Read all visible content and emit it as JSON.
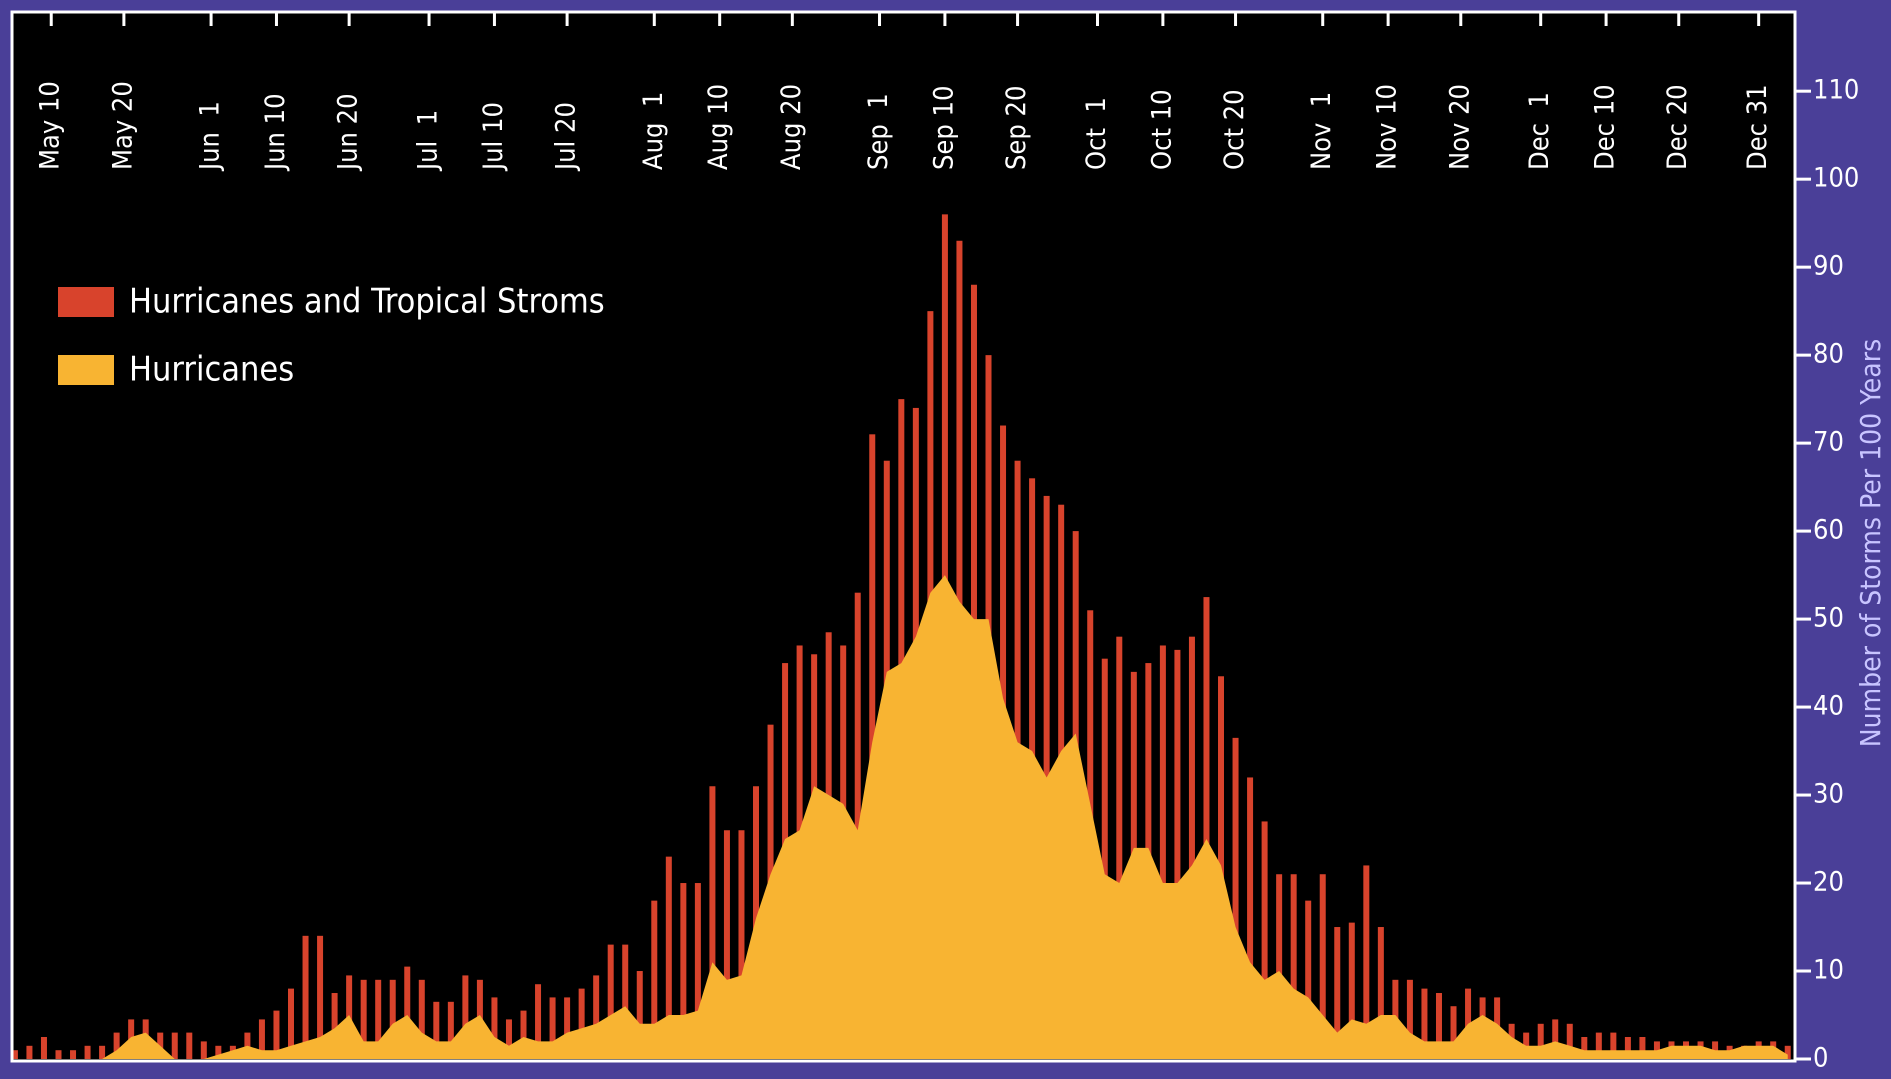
{
  "chart_data": {
    "type": "bar-area",
    "y_label": "Number of Storms Per 100 Years",
    "x": [
      125,
      127,
      129,
      131,
      133,
      135,
      137,
      139,
      141,
      143,
      145,
      147,
      149,
      151,
      153,
      155,
      157,
      159,
      161,
      163,
      165,
      167,
      169,
      171,
      173,
      175,
      177,
      179,
      181,
      183,
      185,
      187,
      189,
      191,
      193,
      195,
      197,
      199,
      201,
      203,
      205,
      207,
      209,
      211,
      213,
      215,
      217,
      219,
      221,
      223,
      225,
      227,
      229,
      231,
      233,
      235,
      237,
      239,
      241,
      243,
      245,
      247,
      249,
      251,
      253,
      255,
      257,
      259,
      261,
      263,
      265,
      267,
      269,
      271,
      273,
      275,
      277,
      279,
      281,
      283,
      285,
      287,
      289,
      291,
      293,
      295,
      297,
      299,
      301,
      303,
      305,
      307,
      309,
      311,
      313,
      315,
      317,
      319,
      321,
      323,
      325,
      327,
      329,
      331,
      333,
      335,
      337,
      339,
      341,
      343,
      345,
      347,
      349,
      351,
      353,
      355,
      357,
      359,
      361,
      363,
      365,
      367,
      369
    ],
    "series": [
      {
        "name": "Hurricanes and Tropical Stroms",
        "color": "#d8432c",
        "style": "bar",
        "values": [
          1,
          1.5,
          2.5,
          1,
          1,
          1.5,
          1.5,
          3,
          4.5,
          4.5,
          3,
          3,
          3,
          2,
          1.5,
          1.5,
          3,
          4.5,
          5.5,
          8,
          14,
          14,
          7.5,
          9.5,
          9,
          9,
          9,
          10.5,
          9,
          6.5,
          6.5,
          9.5,
          9,
          7,
          4.5,
          5.5,
          8.5,
          7,
          7,
          8,
          9.5,
          13,
          13,
          10,
          18,
          23,
          20,
          20,
          31,
          26,
          26,
          31,
          38,
          45,
          47,
          46,
          48.5,
          47,
          53,
          71,
          68,
          75,
          74,
          85,
          96,
          93,
          88,
          80,
          72,
          68,
          66,
          64,
          63,
          60,
          51,
          45.5,
          48,
          44,
          45,
          47,
          46.5,
          48,
          52.5,
          43.5,
          36.5,
          32,
          27,
          21,
          21,
          18,
          21,
          15,
          15.5,
          22,
          15,
          9,
          9,
          8,
          7.5,
          6,
          8,
          7,
          7,
          4,
          3,
          4,
          4.5,
          4,
          2.5,
          3,
          3,
          2.5,
          2.5,
          2,
          2,
          2,
          2,
          2,
          1.5,
          1.5,
          2,
          2,
          1.5
        ]
      },
      {
        "name": "Hurricanes",
        "color": "#f8b432",
        "style": "area",
        "values": [
          0,
          0,
          0,
          0,
          0,
          0,
          0,
          1,
          2.5,
          3,
          1.5,
          0,
          0,
          0,
          0.5,
          1,
          1.5,
          1,
          1,
          1.5,
          2,
          2.5,
          3.5,
          5,
          2,
          2,
          4,
          5,
          3,
          2,
          2,
          4,
          5,
          2.5,
          1.5,
          2.5,
          2,
          2,
          3,
          3.5,
          4,
          5,
          6,
          4,
          4,
          5,
          5,
          5.5,
          11,
          9,
          9.5,
          16,
          21,
          25,
          26,
          31,
          30,
          29,
          26,
          36,
          44,
          45,
          48,
          53,
          55,
          52,
          50,
          50,
          41,
          36,
          35,
          32,
          35,
          37,
          29,
          21,
          20,
          24,
          24,
          20,
          20,
          22,
          25,
          22,
          15,
          11,
          9,
          10,
          8,
          7,
          5,
          3,
          4.5,
          4,
          5,
          5,
          3,
          2,
          2,
          2,
          4,
          5,
          4,
          2.5,
          1.5,
          1.5,
          2,
          1.5,
          1,
          1,
          1,
          1,
          1,
          1,
          1.5,
          1.5,
          1.5,
          1,
          1,
          1.5,
          1.5,
          1.5,
          0.5
        ]
      }
    ],
    "xlim": [
      124.6,
      370
    ],
    "xticks": [
      {
        "value": 130,
        "label": "May 10"
      },
      {
        "value": 140,
        "label": "May 20"
      },
      {
        "value": 152,
        "label": "Jun  1"
      },
      {
        "value": 161,
        "label": "Jun 10"
      },
      {
        "value": 171,
        "label": "Jun 20"
      },
      {
        "value": 182,
        "label": "Jul  1"
      },
      {
        "value": 191,
        "label": "Jul 10"
      },
      {
        "value": 201,
        "label": "Jul 20"
      },
      {
        "value": 213,
        "label": "Aug  1"
      },
      {
        "value": 222,
        "label": "Aug 10"
      },
      {
        "value": 232,
        "label": "Aug 20"
      },
      {
        "value": 244,
        "label": "Sep  1"
      },
      {
        "value": 253,
        "label": "Sep 10"
      },
      {
        "value": 263,
        "label": "Sep 20"
      },
      {
        "value": 274,
        "label": "Oct  1"
      },
      {
        "value": 283,
        "label": "Oct 10"
      },
      {
        "value": 293,
        "label": "Oct 20"
      },
      {
        "value": 305,
        "label": "Nov  1"
      },
      {
        "value": 314,
        "label": "Nov 10"
      },
      {
        "value": 324,
        "label": "Nov 20"
      },
      {
        "value": 335,
        "label": "Dec  1"
      },
      {
        "value": 344,
        "label": "Dec 10"
      },
      {
        "value": 354,
        "label": "Dec 20"
      },
      {
        "value": 365,
        "label": "Dec 31"
      }
    ],
    "ylim": [
      0,
      119
    ],
    "yticks": [
      0,
      10,
      20,
      30,
      40,
      50,
      60,
      70,
      80,
      90,
      100,
      110
    ],
    "legend": "upper left",
    "background": "#000000",
    "page_color": "#4a3f98"
  }
}
